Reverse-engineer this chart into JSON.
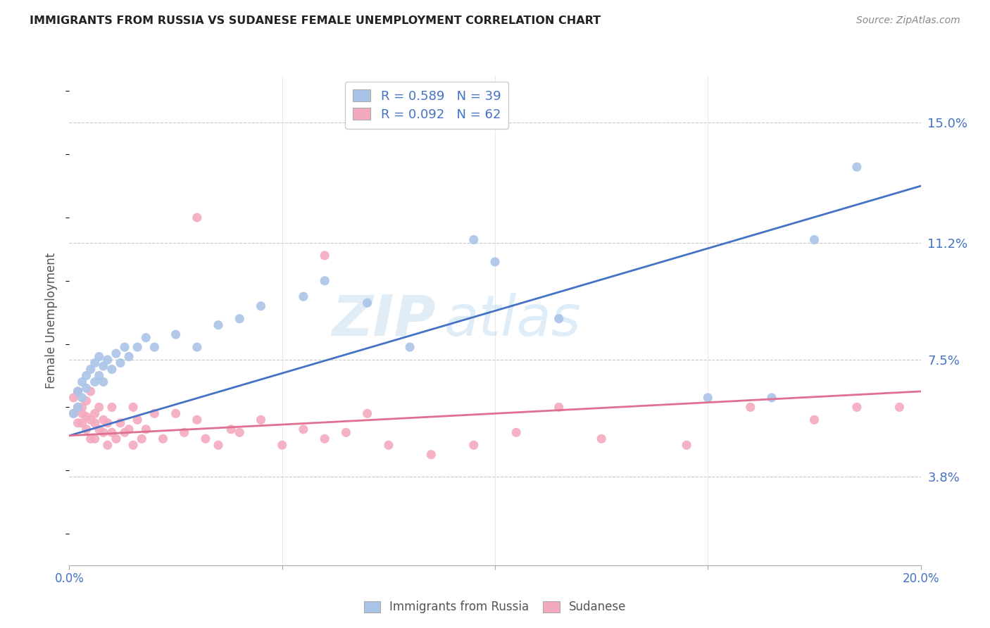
{
  "title": "IMMIGRANTS FROM RUSSIA VS SUDANESE FEMALE UNEMPLOYMENT CORRELATION CHART",
  "source": "Source: ZipAtlas.com",
  "ylabel": "Female Unemployment",
  "ytick_values": [
    0.038,
    0.075,
    0.112,
    0.15
  ],
  "ytick_labels": [
    "3.8%",
    "7.5%",
    "11.2%",
    "15.0%"
  ],
  "xmin": 0.0,
  "xmax": 0.2,
  "ymin": 0.01,
  "ymax": 0.165,
  "legend_entries": [
    {
      "label_r": "R = 0.589",
      "label_n": "N = 39",
      "color": "#aac4e8"
    },
    {
      "label_r": "R = 0.092",
      "label_n": "N = 62",
      "color": "#f4aabe"
    }
  ],
  "legend_bottom": [
    "Immigrants from Russia",
    "Sudanese"
  ],
  "color_russia": "#aac4e8",
  "color_sudanese": "#f4aabe",
  "color_line_russia": "#4472c4",
  "color_line_sudanese": "#e07090",
  "watermark_zip": "ZIP",
  "watermark_atlas": "atlas",
  "russia_x": [
    0.001,
    0.002,
    0.002,
    0.003,
    0.003,
    0.004,
    0.004,
    0.005,
    0.006,
    0.006,
    0.007,
    0.007,
    0.008,
    0.008,
    0.009,
    0.01,
    0.011,
    0.012,
    0.013,
    0.014,
    0.016,
    0.018,
    0.02,
    0.025,
    0.03,
    0.035,
    0.04,
    0.045,
    0.055,
    0.06,
    0.07,
    0.08,
    0.095,
    0.1,
    0.115,
    0.15,
    0.165,
    0.175,
    0.185
  ],
  "russia_y": [
    0.058,
    0.06,
    0.065,
    0.063,
    0.068,
    0.07,
    0.066,
    0.072,
    0.068,
    0.074,
    0.07,
    0.076,
    0.068,
    0.073,
    0.075,
    0.072,
    0.077,
    0.074,
    0.079,
    0.076,
    0.079,
    0.082,
    0.079,
    0.083,
    0.079,
    0.086,
    0.088,
    0.092,
    0.095,
    0.1,
    0.093,
    0.079,
    0.113,
    0.106,
    0.088,
    0.063,
    0.063,
    0.113,
    0.136
  ],
  "sudanese_x": [
    0.001,
    0.001,
    0.002,
    0.002,
    0.002,
    0.003,
    0.003,
    0.003,
    0.004,
    0.004,
    0.004,
    0.005,
    0.005,
    0.005,
    0.006,
    0.006,
    0.006,
    0.007,
    0.007,
    0.008,
    0.008,
    0.009,
    0.009,
    0.01,
    0.01,
    0.011,
    0.012,
    0.013,
    0.014,
    0.015,
    0.015,
    0.016,
    0.017,
    0.018,
    0.02,
    0.022,
    0.025,
    0.027,
    0.03,
    0.032,
    0.035,
    0.038,
    0.04,
    0.045,
    0.05,
    0.055,
    0.06,
    0.065,
    0.07,
    0.075,
    0.085,
    0.095,
    0.105,
    0.115,
    0.125,
    0.145,
    0.16,
    0.175,
    0.185,
    0.195,
    0.03,
    0.06
  ],
  "sudanese_y": [
    0.058,
    0.063,
    0.06,
    0.055,
    0.065,
    0.055,
    0.06,
    0.058,
    0.053,
    0.057,
    0.062,
    0.056,
    0.05,
    0.065,
    0.055,
    0.058,
    0.05,
    0.053,
    0.06,
    0.056,
    0.052,
    0.048,
    0.055,
    0.06,
    0.052,
    0.05,
    0.055,
    0.052,
    0.053,
    0.048,
    0.06,
    0.056,
    0.05,
    0.053,
    0.058,
    0.05,
    0.058,
    0.052,
    0.056,
    0.05,
    0.048,
    0.053,
    0.052,
    0.056,
    0.048,
    0.053,
    0.05,
    0.052,
    0.058,
    0.048,
    0.045,
    0.048,
    0.052,
    0.06,
    0.05,
    0.048,
    0.06,
    0.056,
    0.06,
    0.06,
    0.12,
    0.108
  ],
  "line_russia_x0": 0.0,
  "line_russia_y0": 0.051,
  "line_russia_x1": 0.2,
  "line_russia_y1": 0.13,
  "line_sudanese_x0": 0.0,
  "line_sudanese_y0": 0.051,
  "line_sudanese_x1": 0.2,
  "line_sudanese_y1": 0.065
}
